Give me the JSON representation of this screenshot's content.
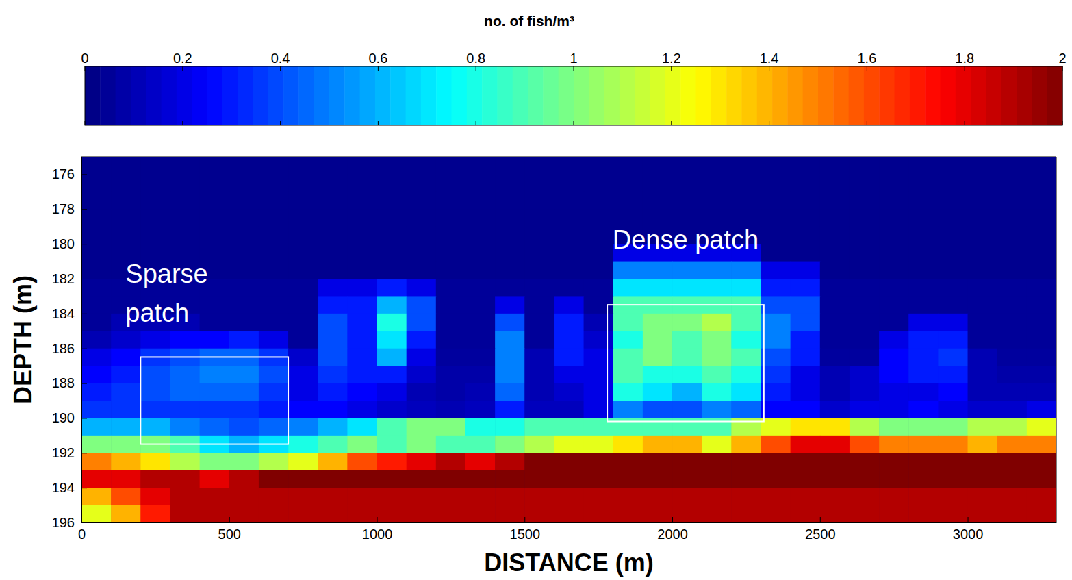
{
  "chart_data": {
    "type": "heatmap",
    "x_label": "DISTANCE (m)",
    "y_label": "DEPTH (m)",
    "xlim": [
      0,
      3300
    ],
    "ylim": [
      175,
      196
    ],
    "xticks": [
      0,
      500,
      1000,
      1500,
      2000,
      2500,
      3000
    ],
    "yticks": [
      176,
      178,
      180,
      182,
      184,
      186,
      188,
      190,
      192,
      194,
      196
    ],
    "x": [
      50,
      150,
      250,
      350,
      450,
      550,
      650,
      750,
      850,
      950,
      1050,
      1150,
      1250,
      1350,
      1450,
      1550,
      1650,
      1750,
      1850,
      1950,
      2050,
      2150,
      2250,
      2350,
      2450,
      2550,
      2650,
      2750,
      2850,
      2950,
      3050,
      3150,
      3250
    ],
    "y": [
      175.5,
      176.5,
      177.5,
      178.5,
      179.5,
      180.5,
      181.5,
      182.5,
      183.5,
      184.5,
      185.5,
      186.5,
      187.5,
      188.5,
      189.5,
      190.5,
      191.5,
      192.5,
      193.5,
      194.5,
      195.5
    ],
    "z": [
      [
        0.03,
        0.03,
        0.03,
        0.03,
        0.03,
        0.03,
        0.03,
        0.03,
        0.03,
        0.03,
        0.03,
        0.03,
        0.03,
        0.03,
        0.03,
        0.03,
        0.03,
        0.03,
        0.03,
        0.03,
        0.03,
        0.03,
        0.03,
        0.03,
        0.03,
        0.03,
        0.03,
        0.03,
        0.03,
        0.03,
        0.03,
        0.03,
        0.03
      ],
      [
        0.03,
        0.03,
        0.03,
        0.03,
        0.03,
        0.03,
        0.03,
        0.03,
        0.03,
        0.03,
        0.03,
        0.03,
        0.03,
        0.03,
        0.03,
        0.03,
        0.03,
        0.03,
        0.03,
        0.03,
        0.03,
        0.03,
        0.03,
        0.03,
        0.03,
        0.03,
        0.03,
        0.03,
        0.03,
        0.03,
        0.03,
        0.03,
        0.03
      ],
      [
        0.03,
        0.03,
        0.03,
        0.03,
        0.03,
        0.03,
        0.03,
        0.03,
        0.03,
        0.03,
        0.03,
        0.03,
        0.03,
        0.03,
        0.03,
        0.03,
        0.03,
        0.03,
        0.03,
        0.03,
        0.03,
        0.03,
        0.03,
        0.03,
        0.03,
        0.03,
        0.03,
        0.03,
        0.03,
        0.03,
        0.03,
        0.03,
        0.03
      ],
      [
        0.03,
        0.03,
        0.03,
        0.03,
        0.03,
        0.03,
        0.03,
        0.03,
        0.03,
        0.03,
        0.03,
        0.03,
        0.03,
        0.03,
        0.03,
        0.03,
        0.03,
        0.03,
        0.03,
        0.03,
        0.03,
        0.03,
        0.03,
        0.03,
        0.03,
        0.03,
        0.03,
        0.03,
        0.03,
        0.03,
        0.03,
        0.03,
        0.03
      ],
      [
        0.03,
        0.03,
        0.03,
        0.03,
        0.03,
        0.03,
        0.03,
        0.03,
        0.03,
        0.03,
        0.03,
        0.03,
        0.03,
        0.03,
        0.03,
        0.03,
        0.03,
        0.03,
        0.03,
        0.03,
        0.03,
        0.03,
        0.03,
        0.03,
        0.03,
        0.03,
        0.03,
        0.03,
        0.03,
        0.03,
        0.03,
        0.03,
        0.03
      ],
      [
        0.03,
        0.03,
        0.03,
        0.03,
        0.03,
        0.03,
        0.03,
        0.03,
        0.03,
        0.03,
        0.03,
        0.03,
        0.03,
        0.03,
        0.03,
        0.03,
        0.03,
        0.03,
        0.2,
        0.2,
        0.2,
        0.2,
        0.2,
        0.03,
        0.03,
        0.03,
        0.03,
        0.03,
        0.03,
        0.03,
        0.03,
        0.03,
        0.03
      ],
      [
        0.03,
        0.03,
        0.03,
        0.03,
        0.03,
        0.03,
        0.03,
        0.03,
        0.03,
        0.03,
        0.03,
        0.03,
        0.03,
        0.03,
        0.03,
        0.03,
        0.03,
        0.03,
        0.5,
        0.5,
        0.5,
        0.5,
        0.5,
        0.2,
        0.2,
        0.03,
        0.03,
        0.03,
        0.03,
        0.03,
        0.03,
        0.03,
        0.03
      ],
      [
        0.05,
        0.05,
        0.05,
        0.05,
        0.05,
        0.05,
        0.05,
        0.05,
        0.2,
        0.2,
        0.3,
        0.2,
        0.05,
        0.05,
        0.05,
        0.05,
        0.05,
        0.05,
        0.7,
        0.7,
        0.7,
        0.7,
        0.7,
        0.3,
        0.3,
        0.05,
        0.05,
        0.05,
        0.05,
        0.05,
        0.05,
        0.05,
        0.05
      ],
      [
        0.05,
        0.05,
        0.05,
        0.05,
        0.05,
        0.05,
        0.05,
        0.05,
        0.3,
        0.3,
        0.6,
        0.4,
        0.05,
        0.05,
        0.2,
        0.05,
        0.2,
        0.05,
        0.9,
        0.9,
        0.9,
        0.9,
        0.9,
        0.4,
        0.4,
        0.05,
        0.05,
        0.05,
        0.05,
        0.05,
        0.05,
        0.05,
        0.05
      ],
      [
        0.05,
        0.1,
        0.1,
        0.1,
        0.05,
        0.05,
        0.05,
        0.05,
        0.4,
        0.3,
        0.8,
        0.4,
        0.05,
        0.05,
        0.4,
        0.05,
        0.3,
        0.1,
        0.9,
        1.0,
        1.0,
        1.1,
        0.9,
        0.5,
        0.4,
        0.05,
        0.05,
        0.05,
        0.2,
        0.2,
        0.05,
        0.05,
        0.05
      ],
      [
        0.1,
        0.15,
        0.2,
        0.25,
        0.25,
        0.3,
        0.2,
        0.05,
        0.4,
        0.3,
        0.7,
        0.3,
        0.05,
        0.05,
        0.5,
        0.05,
        0.3,
        0.15,
        0.8,
        1.0,
        0.9,
        1.0,
        0.8,
        0.5,
        0.3,
        0.05,
        0.05,
        0.2,
        0.3,
        0.3,
        0.05,
        0.05,
        0.05
      ],
      [
        0.2,
        0.25,
        0.35,
        0.4,
        0.45,
        0.45,
        0.35,
        0.15,
        0.4,
        0.3,
        0.6,
        0.2,
        0.06,
        0.06,
        0.5,
        0.1,
        0.3,
        0.2,
        0.9,
        1.0,
        0.9,
        1.0,
        0.9,
        0.4,
        0.3,
        0.06,
        0.06,
        0.25,
        0.3,
        0.35,
        0.1,
        0.06,
        0.06
      ],
      [
        0.25,
        0.3,
        0.4,
        0.45,
        0.5,
        0.5,
        0.4,
        0.2,
        0.35,
        0.3,
        0.3,
        0.15,
        0.08,
        0.08,
        0.5,
        0.1,
        0.2,
        0.2,
        0.9,
        0.8,
        0.8,
        0.9,
        0.8,
        0.35,
        0.2,
        0.1,
        0.15,
        0.25,
        0.3,
        0.3,
        0.1,
        0.08,
        0.08
      ],
      [
        0.3,
        0.35,
        0.4,
        0.45,
        0.45,
        0.45,
        0.35,
        0.2,
        0.3,
        0.25,
        0.2,
        0.1,
        0.08,
        0.1,
        0.45,
        0.1,
        0.15,
        0.2,
        0.8,
        0.7,
        0.6,
        0.8,
        0.7,
        0.3,
        0.2,
        0.1,
        0.15,
        0.2,
        0.2,
        0.25,
        0.1,
        0.1,
        0.1
      ],
      [
        0.35,
        0.35,
        0.35,
        0.35,
        0.35,
        0.35,
        0.3,
        0.25,
        0.25,
        0.2,
        0.15,
        0.12,
        0.1,
        0.12,
        0.3,
        0.12,
        0.12,
        0.2,
        0.5,
        0.4,
        0.4,
        0.5,
        0.45,
        0.25,
        0.25,
        0.15,
        0.2,
        0.2,
        0.25,
        0.2,
        0.15,
        0.15,
        0.2
      ],
      [
        0.6,
        0.6,
        0.6,
        0.5,
        0.45,
        0.4,
        0.45,
        0.5,
        0.6,
        0.7,
        0.9,
        1.0,
        1.0,
        0.8,
        0.8,
        0.9,
        0.9,
        0.9,
        0.9,
        0.9,
        0.9,
        0.9,
        1.1,
        1.2,
        1.3,
        1.3,
        1.1,
        1.0,
        1.0,
        1.0,
        1.1,
        1.1,
        1.2
      ],
      [
        1.0,
        1.0,
        1.0,
        0.9,
        0.7,
        0.6,
        0.7,
        0.8,
        0.9,
        1.0,
        0.9,
        1.0,
        0.9,
        0.9,
        1.0,
        1.1,
        1.2,
        1.2,
        1.3,
        1.4,
        1.4,
        1.2,
        1.4,
        1.6,
        1.8,
        1.8,
        1.6,
        1.5,
        1.5,
        1.5,
        1.4,
        1.5,
        1.5
      ],
      [
        1.5,
        1.4,
        1.3,
        1.1,
        1.0,
        1.0,
        1.1,
        1.2,
        1.4,
        1.6,
        1.7,
        1.8,
        1.9,
        1.8,
        1.9,
        2,
        2,
        2,
        2,
        2,
        2,
        2,
        2,
        2,
        2,
        2,
        2,
        2,
        2,
        2,
        2,
        2,
        2
      ],
      [
        1.8,
        1.8,
        1.9,
        1.9,
        1.8,
        1.9,
        2,
        2,
        2,
        2,
        2,
        2,
        2,
        2,
        2,
        2,
        2,
        2,
        2,
        2,
        2,
        2,
        2,
        2,
        2,
        2,
        2,
        2,
        2,
        2,
        2,
        2,
        2
      ],
      [
        1.4,
        1.6,
        1.8,
        1.9,
        1.9,
        1.9,
        1.9,
        1.9,
        1.9,
        1.9,
        1.9,
        1.9,
        1.9,
        1.9,
        1.9,
        1.9,
        1.9,
        1.9,
        1.9,
        1.9,
        1.9,
        1.9,
        1.9,
        1.9,
        1.9,
        1.9,
        1.9,
        1.9,
        1.9,
        1.9,
        1.9,
        1.9,
        1.9
      ],
      [
        1.2,
        1.4,
        1.7,
        1.9,
        1.9,
        1.9,
        1.9,
        1.9,
        1.9,
        1.9,
        1.9,
        1.9,
        1.9,
        1.9,
        1.9,
        1.9,
        1.9,
        1.9,
        1.9,
        1.9,
        1.9,
        1.9,
        1.9,
        1.9,
        1.9,
        1.9,
        1.9,
        1.9,
        1.9,
        1.9,
        1.9,
        1.9,
        1.9
      ]
    ],
    "colorbar": {
      "label": "no. of fish/m³",
      "range": [
        0,
        2
      ],
      "ticks": [
        0,
        0.2,
        0.4,
        0.6,
        0.8,
        1,
        1.2,
        1.4,
        1.6,
        1.8,
        2
      ]
    },
    "annotations": [
      {
        "text": "Sparse patch",
        "x": [
          200,
          700
        ],
        "y": [
          186.5,
          191.5
        ]
      },
      {
        "text": "Dense patch",
        "x": [
          1780,
          2310
        ],
        "y": [
          183.5,
          190.2
        ]
      }
    ]
  }
}
